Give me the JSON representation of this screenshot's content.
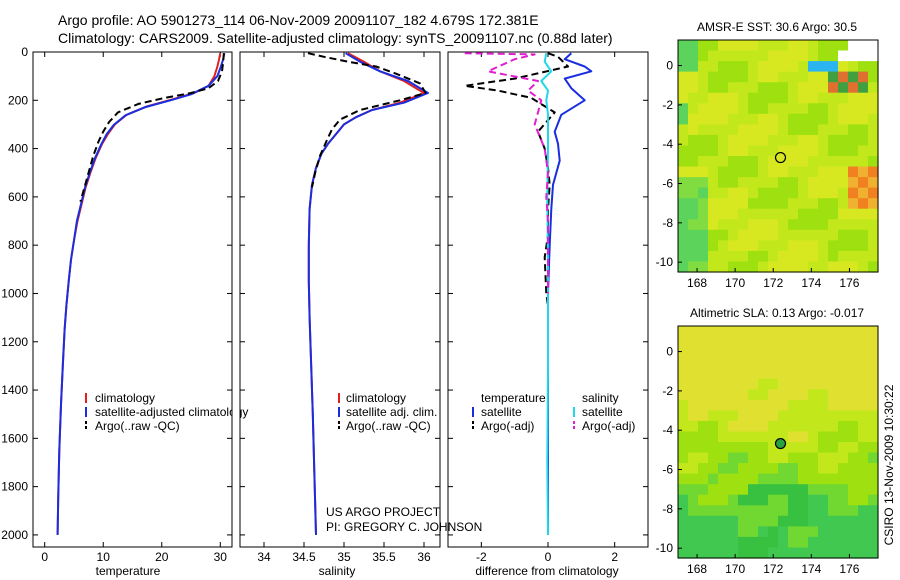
{
  "header": {
    "line1": "Argo profile: AO 5901273_114 06-Nov-2009 20091107_182 4.679S 172.381E",
    "line2": "Climatology: CARS2009. Satellite-adjusted climatology: synTS_20091107.nc (0.88d later)"
  },
  "credits": {
    "project": "US ARGO PROJECT",
    "pi": "PI: GREGORY C. JOHNSON",
    "stamp": "CSIRO 13-Nov-2009 10:30:22"
  },
  "colors": {
    "climatology": "#e02020",
    "satellite": "#1a2ee0",
    "argo": "#000000",
    "satellite_sal": "#20d8e8",
    "argo_sal": "#e020d0"
  },
  "chart_data": [
    {
      "type": "line",
      "id": "temperature",
      "xlabel": "temperature",
      "ylabel": "",
      "xlim": [
        -2,
        32
      ],
      "ylim": [
        2050,
        0
      ],
      "xticks": [
        0,
        10,
        20,
        30
      ],
      "yticks": [
        0,
        200,
        400,
        600,
        800,
        1000,
        1200,
        1400,
        1600,
        1800,
        2000
      ],
      "legend": [
        "climatology",
        "satellite-adjusted climatology",
        "Argo(..raw -QC)"
      ],
      "series": [
        {
          "name": "climatology",
          "color": "climatology",
          "dash": false,
          "x": [
            30.0,
            29.8,
            29.5,
            29.0,
            28.0,
            25.5,
            22.0,
            17.5,
            14.0,
            12.0,
            10.8,
            9.8,
            8.7,
            7.8,
            7.0,
            6.3,
            5.6,
            5.0,
            4.5,
            4.1,
            3.7,
            3.4,
            3.1,
            2.8,
            2.5,
            2.3,
            2.2
          ],
          "y": [
            5,
            30,
            60,
            100,
            140,
            170,
            195,
            225,
            260,
            300,
            340,
            380,
            440,
            500,
            560,
            630,
            700,
            780,
            860,
            950,
            1050,
            1150,
            1300,
            1450,
            1650,
            1850,
            2000
          ]
        },
        {
          "name": "satellite",
          "color": "satellite",
          "dash": false,
          "x": [
            30.7,
            30.5,
            30.1,
            29.5,
            28.0,
            25.0,
            21.5,
            17.2,
            13.8,
            11.8,
            10.6,
            9.7,
            8.6,
            7.7,
            6.9,
            6.2,
            5.5,
            5.0,
            4.5,
            4.1,
            3.7,
            3.4,
            3.1,
            2.8,
            2.5,
            2.3,
            2.2
          ],
          "y": [
            5,
            30,
            60,
            100,
            140,
            175,
            200,
            228,
            262,
            302,
            340,
            380,
            440,
            500,
            560,
            630,
            700,
            780,
            860,
            950,
            1050,
            1150,
            1300,
            1450,
            1650,
            1850,
            2000
          ]
        },
        {
          "name": "argo",
          "color": "argo",
          "dash": true,
          "x": [
            30.6,
            30.5,
            30.3,
            29.6,
            28.0,
            25.0,
            20.5,
            16.0,
            12.5,
            11.0,
            10.0,
            9.2,
            8.3,
            7.5,
            6.8,
            6.1
          ],
          "y": [
            5,
            40,
            80,
            120,
            150,
            170,
            190,
            215,
            250,
            290,
            330,
            370,
            430,
            500,
            560,
            620
          ]
        }
      ]
    },
    {
      "type": "line",
      "id": "salinity",
      "xlabel": "salinity",
      "ylabel": "",
      "xlim": [
        33.7,
        36.2
      ],
      "ylim": [
        2050,
        0
      ],
      "xticks": [
        34,
        34.5,
        35,
        35.5,
        36
      ],
      "legend": [
        "climatology",
        "satellite adj. clim.",
        "Argo(..raw -QC)"
      ],
      "series": [
        {
          "name": "climatology",
          "color": "climatology",
          "dash": false,
          "x": [
            35.05,
            35.25,
            35.45,
            35.75,
            36.0,
            35.7,
            35.35,
            35.15,
            35.0,
            34.9,
            34.8,
            34.72,
            34.65,
            34.6,
            34.57,
            34.56,
            34.56,
            34.57,
            34.59,
            34.61,
            34.63,
            34.65
          ],
          "y": [
            5,
            40,
            80,
            120,
            170,
            210,
            240,
            270,
            300,
            340,
            380,
            420,
            480,
            550,
            650,
            800,
            950,
            1100,
            1300,
            1500,
            1750,
            2000
          ]
        },
        {
          "name": "satellite",
          "color": "satellite",
          "dash": false,
          "x": [
            35.02,
            35.2,
            35.45,
            35.8,
            36.05,
            35.75,
            35.35,
            35.15,
            35.0,
            34.9,
            34.8,
            34.72,
            34.65,
            34.6,
            34.57,
            34.56,
            34.56,
            34.57,
            34.59,
            34.61,
            34.63,
            34.65
          ],
          "y": [
            5,
            40,
            80,
            120,
            170,
            210,
            240,
            270,
            300,
            340,
            380,
            420,
            480,
            550,
            650,
            800,
            950,
            1100,
            1300,
            1500,
            1750,
            2000
          ]
        },
        {
          "name": "argo",
          "color": "argo",
          "dash": true,
          "x": [
            34.55,
            34.75,
            35.05,
            35.4,
            35.65,
            35.95,
            36.02,
            35.7,
            35.2,
            34.95,
            34.85,
            34.78,
            34.7,
            34.64,
            34.6
          ],
          "y": [
            5,
            20,
            40,
            60,
            90,
            130,
            170,
            200,
            240,
            280,
            320,
            370,
            430,
            500,
            560
          ]
        }
      ]
    },
    {
      "type": "line",
      "id": "difference",
      "xlabel": "difference from climatology",
      "ylabel": "",
      "xlim": [
        -3,
        3
      ],
      "ylim": [
        2050,
        0
      ],
      "xticks": [
        -2,
        0,
        2
      ],
      "legend": {
        "temperature_title": "temperature",
        "salinity_title": "salinity",
        "temperature": [
          "satellite",
          "Argo(-adj)"
        ],
        "salinity": [
          "satellite",
          "Argo(-adj)"
        ]
      },
      "series": [
        {
          "name": "temperature satellite",
          "color": "satellite",
          "dash": false,
          "x": [
            0.7,
            0.5,
            1.1,
            1.3,
            0.5,
            0.7,
            1.1,
            0.4,
            0.2,
            0.3,
            0.35,
            0.15,
            0.1,
            0.05,
            0.0,
            0.0,
            0.0
          ],
          "y": [
            5,
            30,
            60,
            80,
            110,
            150,
            200,
            260,
            330,
            380,
            450,
            550,
            650,
            800,
            1000,
            1500,
            2000
          ]
        },
        {
          "name": "temperature argo",
          "color": "argo",
          "dash": true,
          "x": [
            0.0,
            0.3,
            0.6,
            -1.0,
            -2.5,
            -1.5,
            -0.5,
            0.2,
            -0.3,
            -0.1,
            0.0,
            0.05,
            0.0,
            0.0,
            -0.1,
            -0.05,
            0.0
          ],
          "y": [
            5,
            20,
            60,
            110,
            140,
            160,
            190,
            250,
            330,
            400,
            480,
            550,
            650,
            760,
            850,
            1000,
            1050
          ]
        },
        {
          "name": "salinity satellite",
          "color": "satellite_sal",
          "dash": false,
          "x": [
            -0.05,
            -0.1,
            0.1,
            -0.2,
            0.0,
            -0.05,
            0.0,
            0.0,
            -0.02,
            0.0,
            0.0,
            -0.02,
            0.0
          ],
          "y": [
            5,
            40,
            80,
            120,
            160,
            200,
            260,
            400,
            600,
            900,
            1300,
            1700,
            2000
          ]
        },
        {
          "name": "salinity argo",
          "color": "argo_sal",
          "dash": true,
          "x": [
            -2.5,
            -0.4,
            -1.0,
            -1.8,
            -0.3,
            -0.6,
            -0.2,
            -0.4,
            -0.1,
            0.0,
            -0.05,
            0.0,
            0.0,
            0.0
          ],
          "y": [
            5,
            10,
            30,
            80,
            120,
            160,
            200,
            300,
            400,
            500,
            600,
            700,
            850,
            1000
          ]
        }
      ]
    },
    {
      "type": "heatmap",
      "id": "sst_map",
      "title": "AMSR-E SST: 30.6 Argo: 30.5",
      "xlim": [
        167,
        177.5
      ],
      "ylim": [
        -10.5,
        1.3
      ],
      "xticks": [
        168,
        170,
        172,
        174,
        176
      ],
      "yticks": [
        0,
        -2,
        -4,
        -6,
        -8,
        -10
      ],
      "marker": {
        "lon": 172.381,
        "lat": -4.679,
        "filled": false
      }
    },
    {
      "type": "heatmap",
      "id": "sla_map",
      "title": "Altimetric SLA: 0.13 Argo: -0.017",
      "xlim": [
        167,
        177.5
      ],
      "ylim": [
        -10.5,
        1.3
      ],
      "xticks": [
        168,
        170,
        172,
        174,
        176
      ],
      "yticks": [
        0,
        -2,
        -4,
        -6,
        -8,
        -10
      ],
      "marker": {
        "lon": 172.381,
        "lat": -4.679,
        "filled": true
      }
    }
  ]
}
